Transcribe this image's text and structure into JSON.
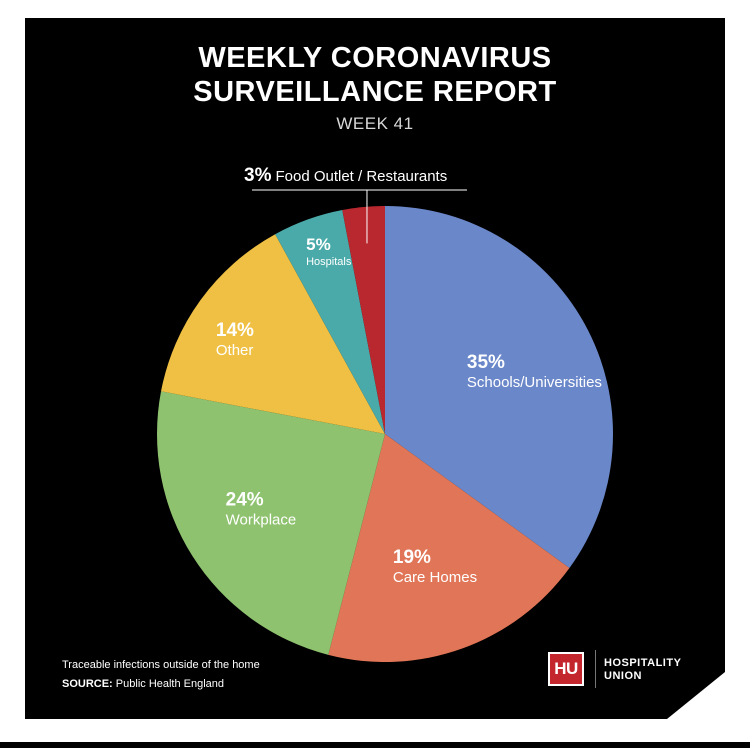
{
  "header": {
    "title_line_1": "WEEKLY CORONAVIRUS",
    "title_line_2": "SURVEILLANCE REPORT",
    "subtitle": "WEEK 41"
  },
  "chart_data": {
    "type": "pie",
    "title": "WEEKLY CORONAVIRUS SURVEILLANCE REPORT",
    "subtitle": "WEEK 41",
    "start_angle_deg": 0,
    "direction": "clockwise",
    "slices": [
      {
        "label": "Schools/Universities",
        "value": 35,
        "pct_label": "35%",
        "color": "#6a87c9"
      },
      {
        "label": "Care Homes",
        "value": 19,
        "pct_label": "19%",
        "color": "#e07657"
      },
      {
        "label": "Workplace",
        "value": 24,
        "pct_label": "24%",
        "color": "#8ec26e"
      },
      {
        "label": "Other",
        "value": 14,
        "pct_label": "14%",
        "color": "#efc043"
      },
      {
        "label": "Hospitals",
        "value": 5,
        "pct_label": "5%",
        "color": "#4aaaa9"
      },
      {
        "label": "Food Outlet / Restaurants",
        "value": 3,
        "pct_label": "3%",
        "color": "#b8282e",
        "label_style": "callout"
      }
    ]
  },
  "footer": {
    "note": "Traceable infections outside of the home",
    "source_key": "SOURCE:",
    "source_value": "Public Health England"
  },
  "logo": {
    "initials": "HU",
    "name_line_1": "HOSPITALITY",
    "name_line_2": "UNION",
    "color": "#c4262e"
  },
  "colors": {
    "background": "#000000",
    "frame": "#ffffff"
  }
}
